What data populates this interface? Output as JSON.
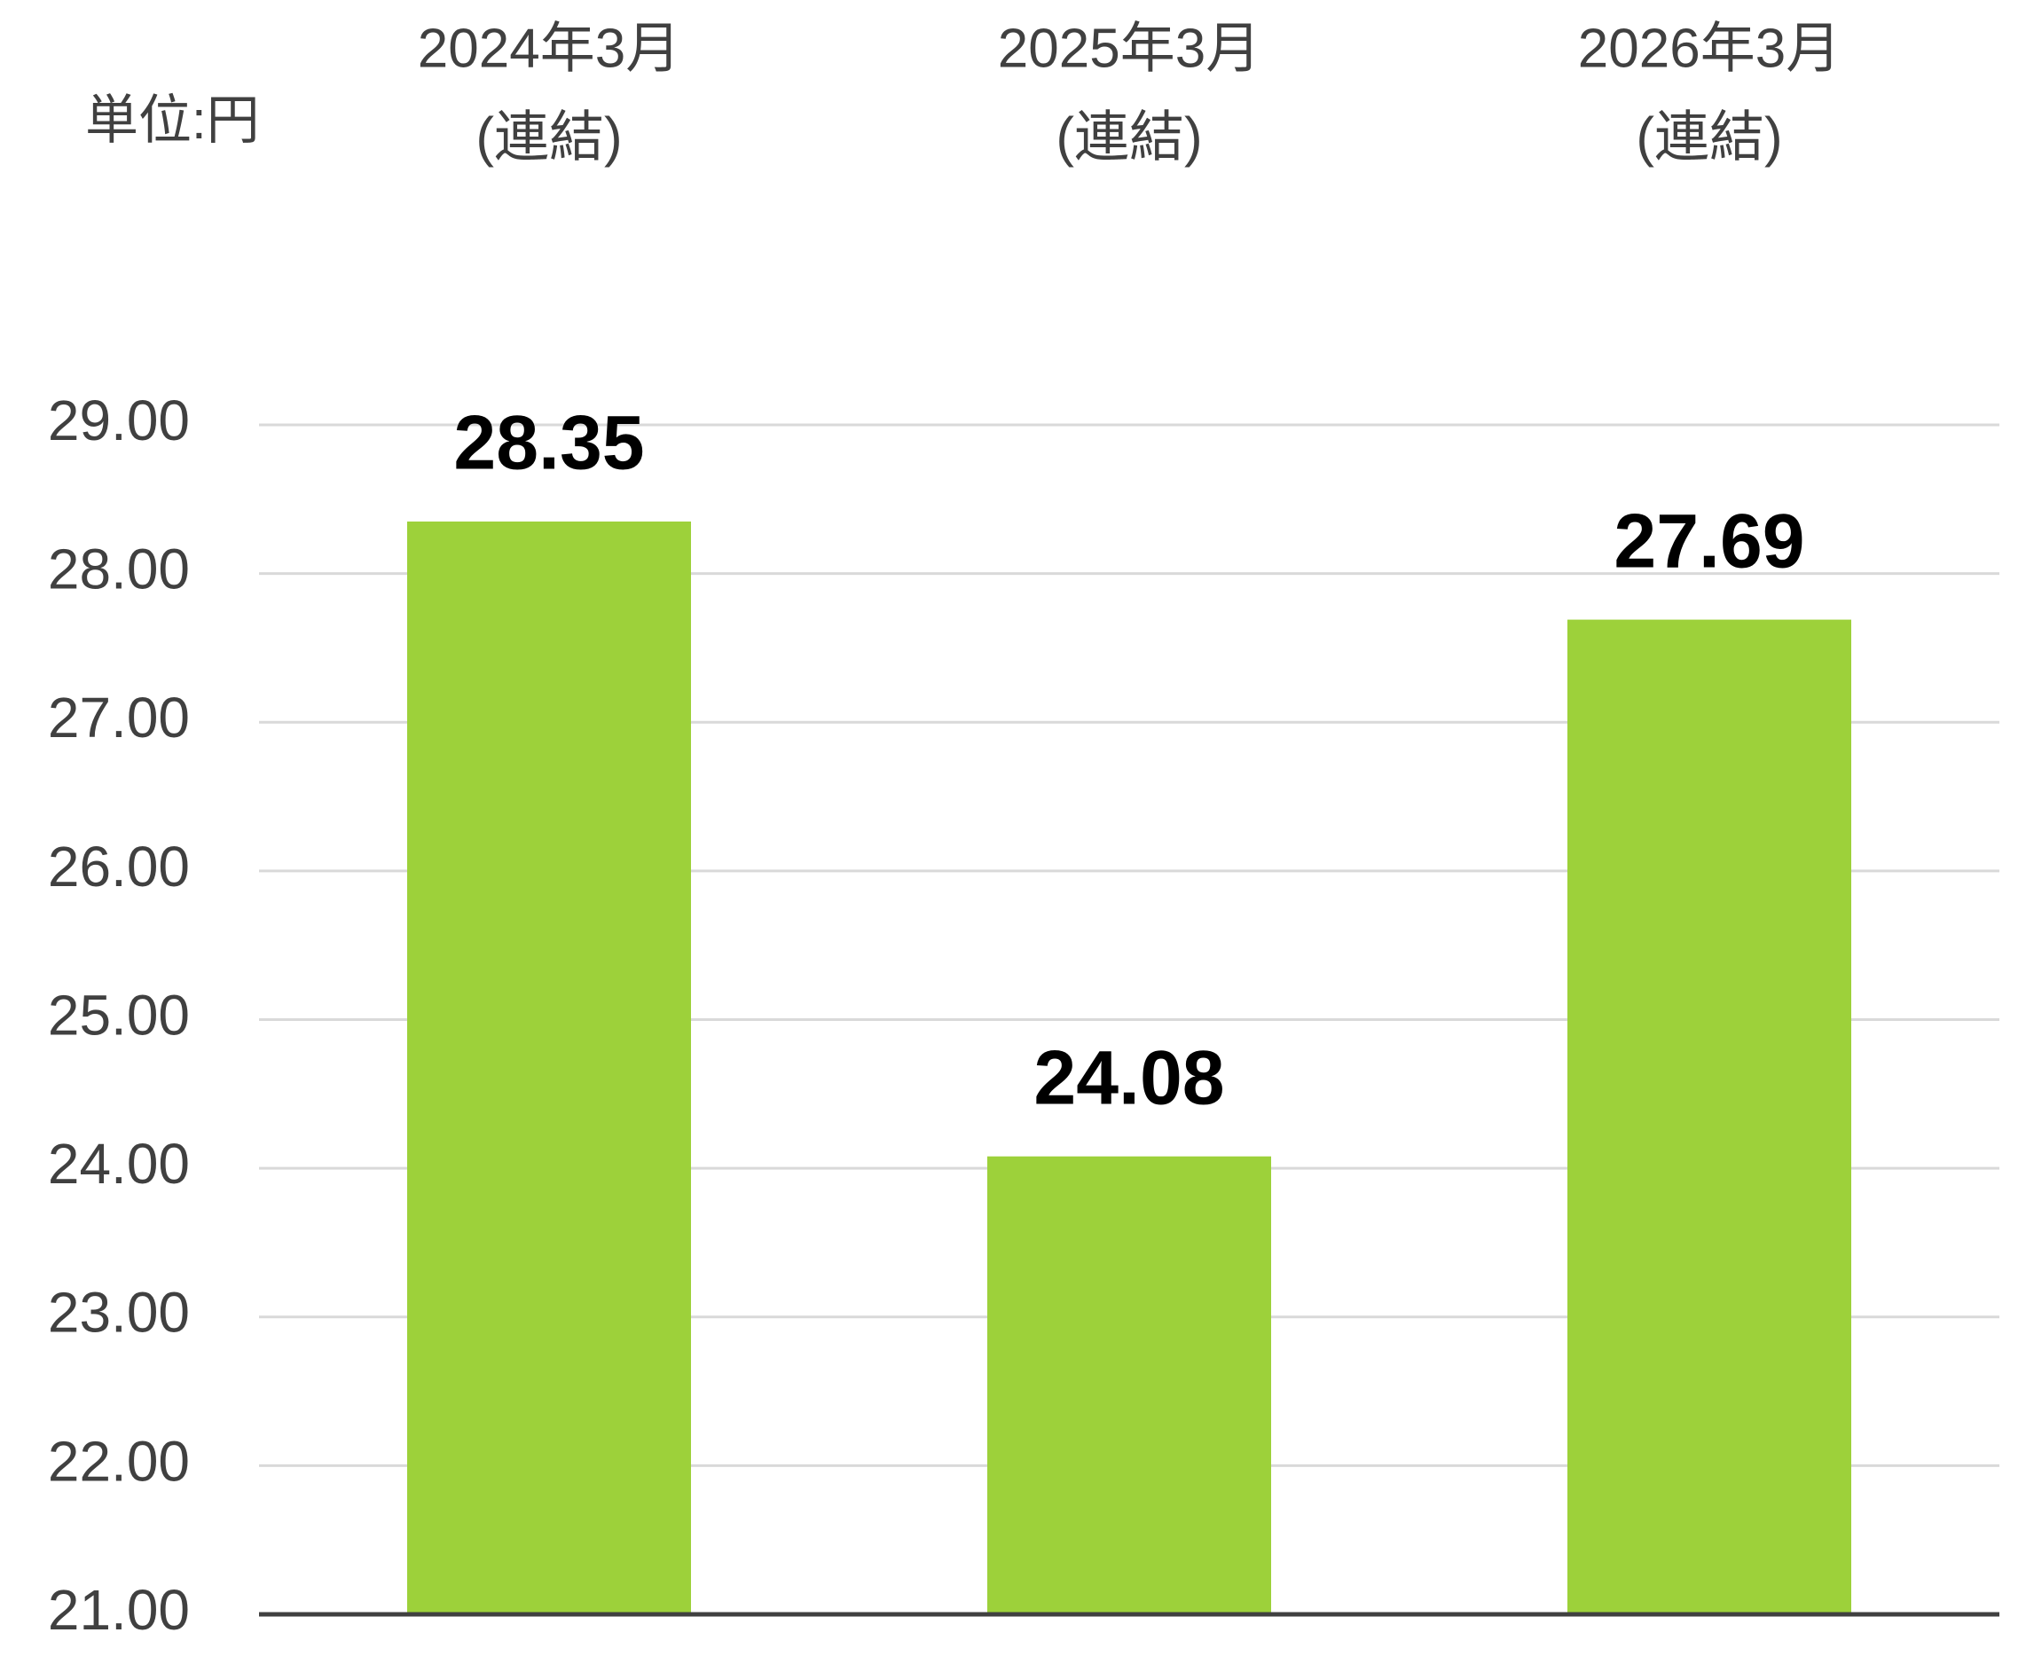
{
  "chart_data": {
    "type": "bar",
    "unit_label": "単位:円",
    "categories": [
      [
        "2024年3月",
        "(連結)"
      ],
      [
        "2025年3月",
        "(連結)"
      ],
      [
        "2026年3月",
        "(連結)"
      ]
    ],
    "values": [
      28.35,
      24.08,
      27.69
    ],
    "color": "#9dd13a",
    "ylim": [
      21,
      29
    ],
    "yticks": [
      {
        "value": 21,
        "label": "21.00"
      },
      {
        "value": 22,
        "label": "22.00"
      },
      {
        "value": 23,
        "label": "23.00"
      },
      {
        "value": 24,
        "label": "24.00"
      },
      {
        "value": 25,
        "label": "25.00"
      },
      {
        "value": 26,
        "label": "26.00"
      },
      {
        "value": 27,
        "label": "27.00"
      },
      {
        "value": 28,
        "label": "28.00"
      },
      {
        "value": 29,
        "label": "29.00"
      }
    ],
    "grid": true
  }
}
